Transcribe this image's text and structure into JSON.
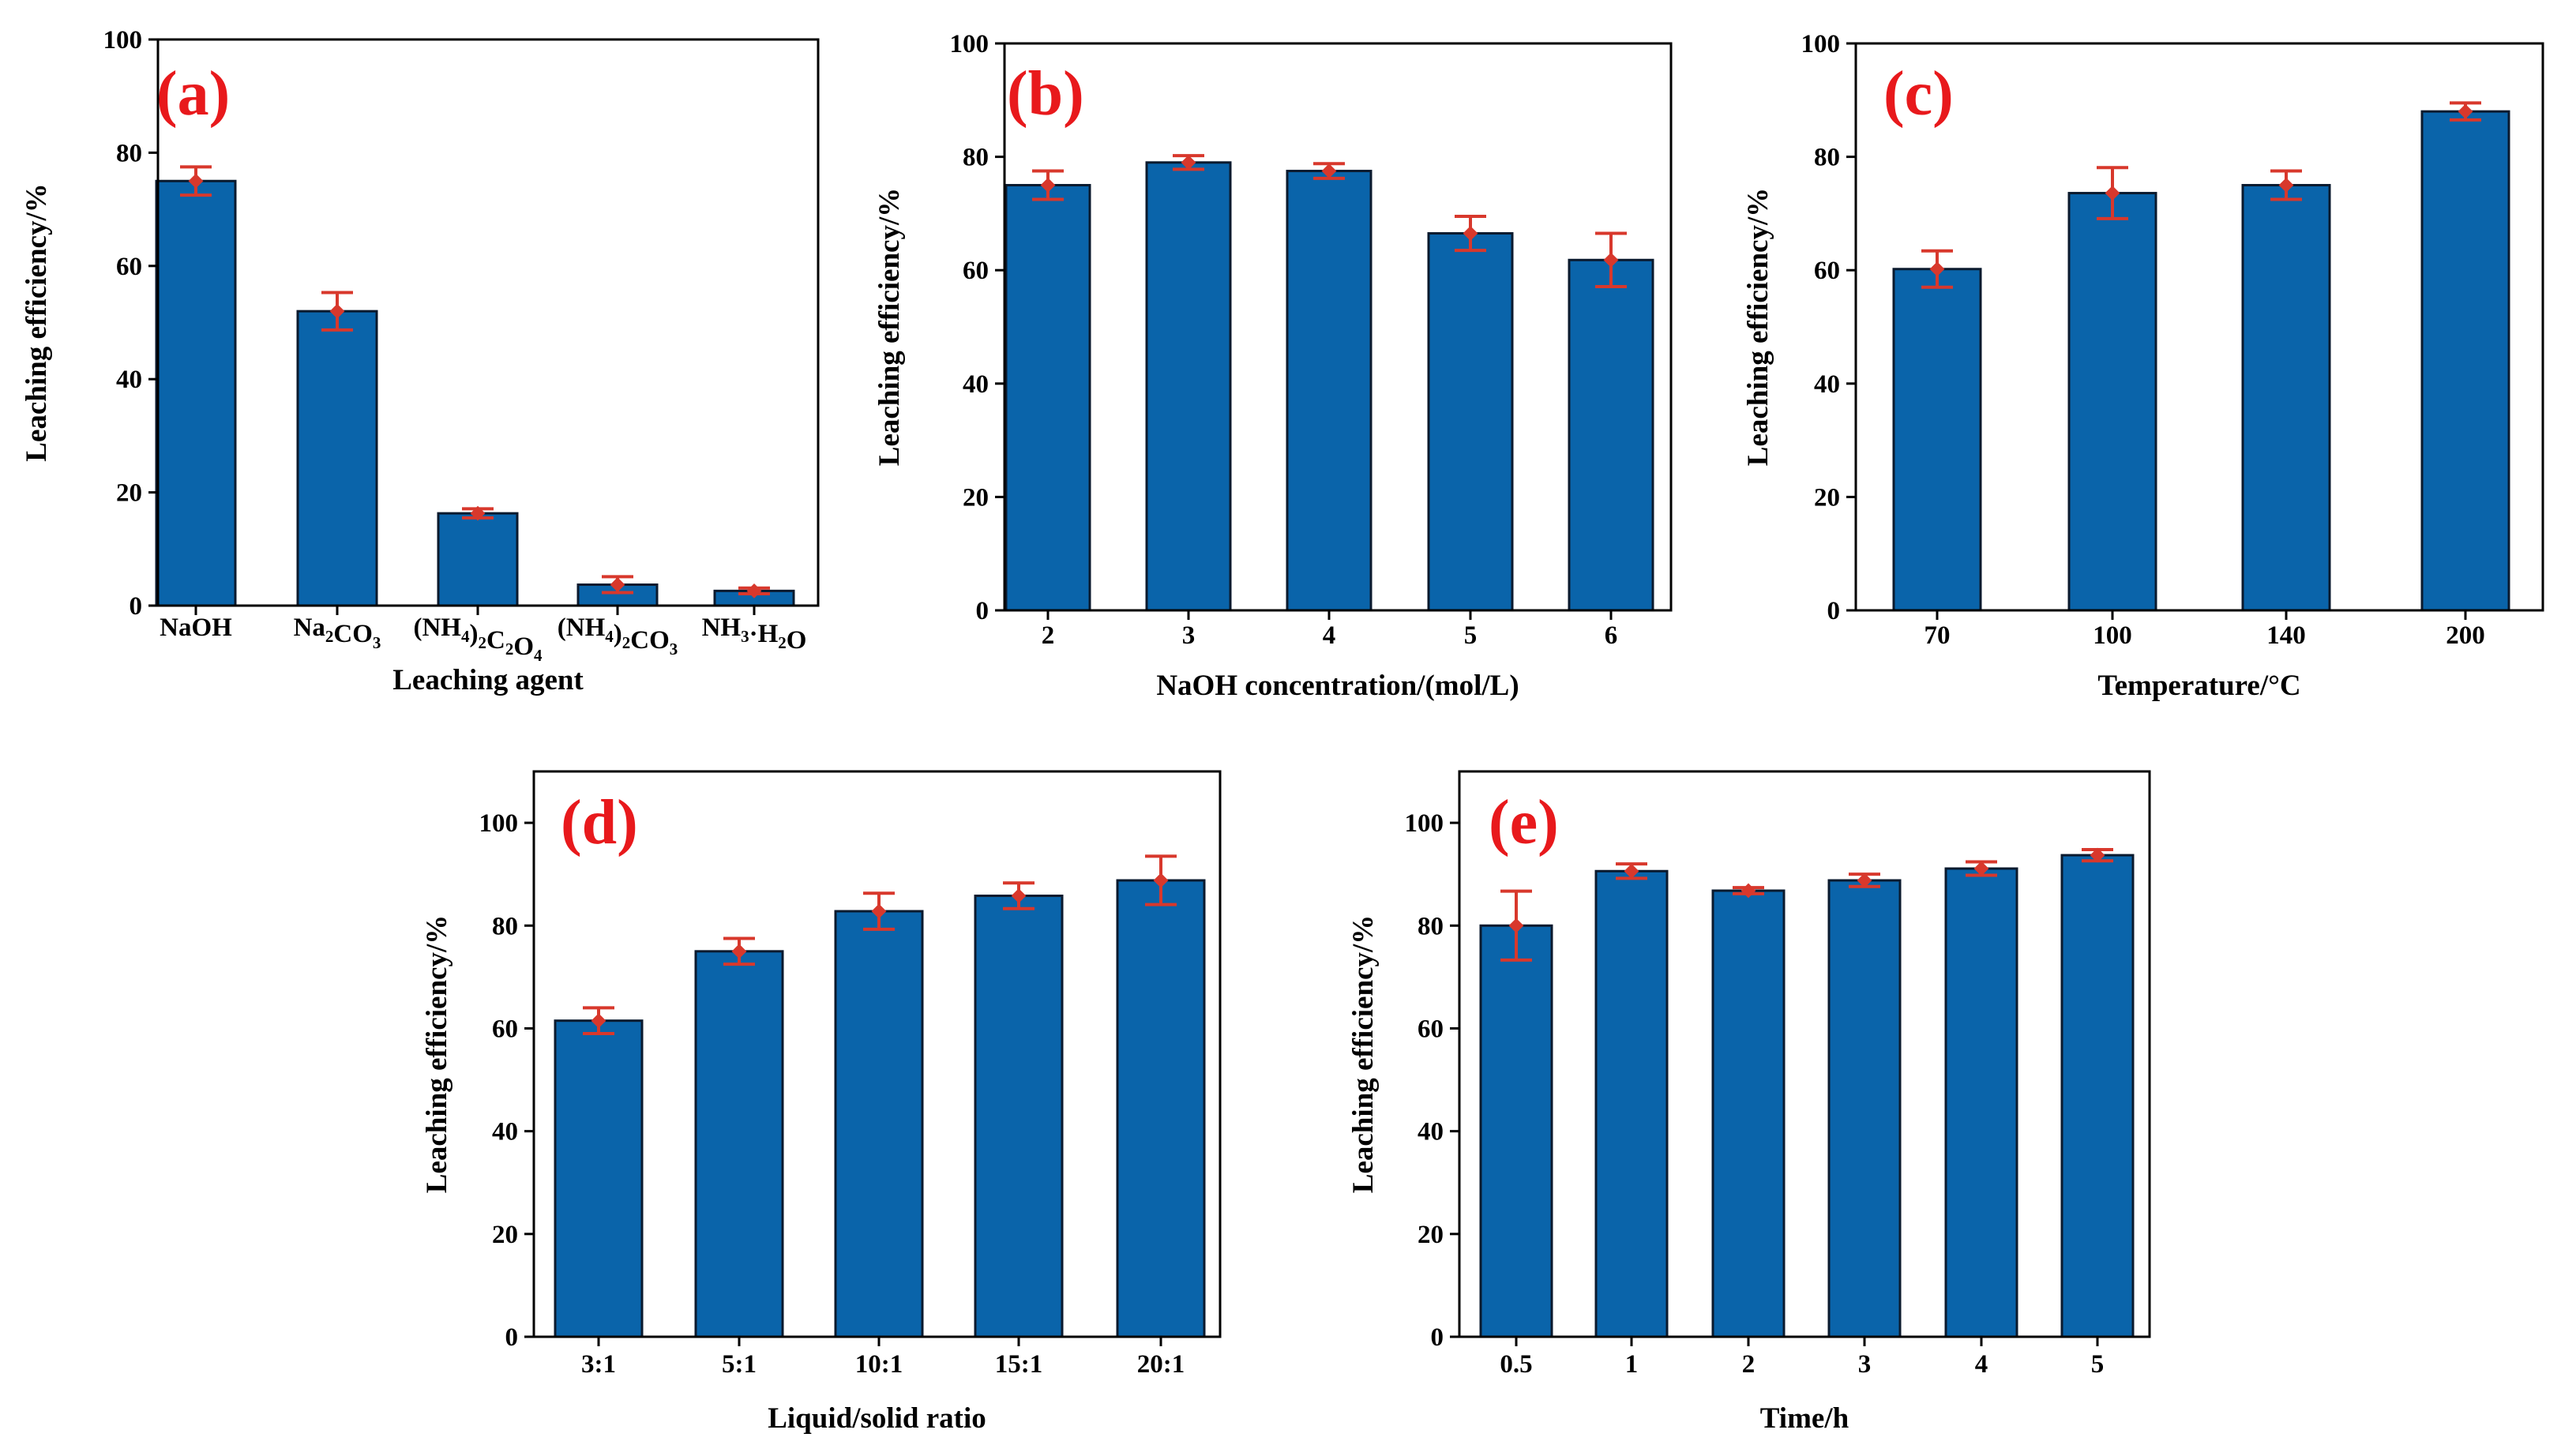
{
  "colors": {
    "bar": "#0a64aa",
    "bar_edge": "#0b1a2e",
    "error": "#d8382c",
    "label": "#e8191c",
    "axis": "#000000"
  },
  "chart_data": [
    {
      "type": "bar",
      "panel": "(a)",
      "categories": [
        "NaOH",
        "Na2CO3",
        "(NH4)2C2O4",
        "(NH4)2CO3",
        "NH3·H2O"
      ],
      "tick_labels": [
        [
          {
            "t": "NaOH"
          }
        ],
        [
          {
            "t": "Na"
          },
          {
            "t": "2",
            "sub": true
          },
          {
            "t": "CO"
          },
          {
            "t": "3",
            "sub": true
          }
        ],
        [
          {
            "t": "(NH"
          },
          {
            "t": "4",
            "sub": true
          },
          {
            "t": ")"
          },
          {
            "t": "2",
            "sub": true
          },
          {
            "t": "C"
          },
          {
            "t": "2",
            "sub": true
          },
          {
            "t": "O"
          },
          {
            "t": "4",
            "sub": true
          }
        ],
        [
          {
            "t": "(NH"
          },
          {
            "t": "4",
            "sub": true
          },
          {
            "t": ")"
          },
          {
            "t": "2",
            "sub": true
          },
          {
            "t": "CO"
          },
          {
            "t": "3",
            "sub": true
          }
        ],
        [
          {
            "t": "NH"
          },
          {
            "t": "3",
            "sub": true
          },
          {
            "t": "·H"
          },
          {
            "t": "2",
            "sub": true
          },
          {
            "t": "O"
          }
        ]
      ],
      "values": [
        75,
        52,
        16.3,
        3.7,
        2.6
      ],
      "errors": [
        2.5,
        3.3,
        0.8,
        1.4,
        0.5
      ],
      "xlabel": "Leaching agent",
      "ylabel": "Leaching efficiency/%",
      "ylim": [
        0,
        100
      ],
      "yticks": [
        0,
        20,
        40,
        60,
        80,
        100
      ]
    },
    {
      "type": "bar",
      "panel": "(b)",
      "categories": [
        "2",
        "3",
        "4",
        "5",
        "6"
      ],
      "values": [
        75,
        79,
        77.5,
        66.5,
        61.8
      ],
      "errors": [
        2.5,
        1.2,
        1.3,
        3.0,
        4.7
      ],
      "xlabel": "NaOH concentration/(mol/L)",
      "ylabel": "Leaching efficiency/%",
      "ylim": [
        0,
        100
      ],
      "yticks": [
        0,
        20,
        40,
        60,
        80,
        100
      ]
    },
    {
      "type": "bar",
      "panel": "(c)",
      "categories": [
        "70",
        "100",
        "140",
        "200"
      ],
      "values": [
        60.2,
        73.6,
        75,
        88
      ],
      "errors": [
        3.2,
        4.5,
        2.5,
        1.5
      ],
      "xlabel": "Temperature/°C",
      "ylabel": "Leaching efficiency/%",
      "ylim": [
        0,
        100
      ],
      "yticks": [
        0,
        20,
        40,
        60,
        80,
        100
      ]
    },
    {
      "type": "bar",
      "panel": "(d)",
      "categories": [
        "3:1",
        "5:1",
        "10:1",
        "15:1",
        "20:1"
      ],
      "values": [
        61.5,
        75,
        82.8,
        85.8,
        88.8
      ],
      "errors": [
        2.5,
        2.5,
        3.5,
        2.5,
        4.7
      ],
      "xlabel": "Liquid/solid ratio",
      "ylabel": "Leaching efficiency/%",
      "ylim": [
        0,
        110
      ],
      "yticks": [
        0,
        20,
        40,
        60,
        80,
        100
      ]
    },
    {
      "type": "bar",
      "panel": "(e)",
      "categories": [
        "0.5",
        "1",
        "2",
        "3",
        "4",
        "5"
      ],
      "values": [
        80,
        90.6,
        86.8,
        88.8,
        91.1,
        93.7
      ],
      "errors": [
        6.7,
        1.4,
        0.6,
        1.2,
        1.3,
        1.1
      ],
      "xlabel": "Time/h",
      "ylabel": "Leaching efficiency/%",
      "ylim": [
        0,
        110
      ],
      "yticks": [
        0,
        20,
        40,
        60,
        80,
        100
      ]
    }
  ]
}
